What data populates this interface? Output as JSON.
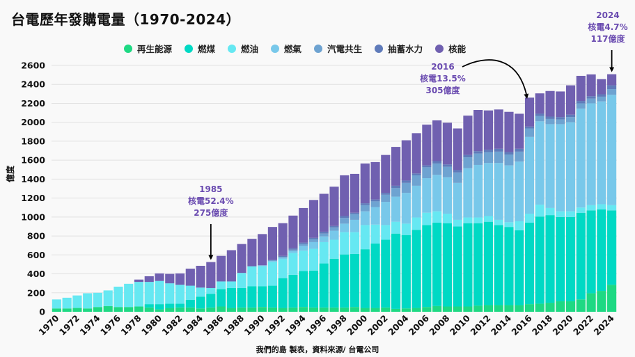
{
  "chart_data": {
    "type": "bar",
    "stacked": true,
    "title": "台電歷年發購電量（1970-2024）",
    "xlabel": "",
    "ylabel": "億度",
    "ylim": [
      0,
      2600
    ],
    "yticks": [
      0,
      200,
      400,
      600,
      800,
      1000,
      1200,
      1400,
      1600,
      1800,
      2000,
      2200,
      2400,
      2600
    ],
    "grid": true,
    "legend_position": "top",
    "source": "我們的島 製表，資料來源/ 台電公司",
    "categories": [
      1970,
      1971,
      1972,
      1973,
      1974,
      1975,
      1976,
      1977,
      1978,
      1979,
      1980,
      1981,
      1982,
      1983,
      1984,
      1985,
      1986,
      1987,
      1988,
      1989,
      1990,
      1991,
      1992,
      1993,
      1994,
      1995,
      1996,
      1997,
      1998,
      1999,
      2000,
      2001,
      2002,
      2003,
      2004,
      2005,
      2006,
      2007,
      2008,
      2009,
      2010,
      2011,
      2012,
      2013,
      2014,
      2015,
      2016,
      2017,
      2018,
      2019,
      2020,
      2021,
      2022,
      2023,
      2024
    ],
    "xtick_labels": [
      "1970",
      "1972",
      "1974",
      "1976",
      "1978",
      "1980",
      "1982",
      "1984",
      "1986",
      "1988",
      "1990",
      "1992",
      "1994",
      "1996",
      "1998",
      "2000",
      "2002",
      "2004",
      "2006",
      "2008",
      "2010",
      "2012",
      "2014",
      "2016",
      "2018",
      "2020",
      "2022",
      "2024"
    ],
    "series": [
      {
        "name": "再生能源",
        "color": "#1ed983",
        "values": [
          35,
          35,
          40,
          35,
          50,
          60,
          50,
          50,
          55,
          45,
          25,
          40,
          45,
          45,
          35,
          45,
          55,
          40,
          45,
          45,
          50,
          45,
          40,
          45,
          50,
          45,
          45,
          45,
          45,
          50,
          40,
          40,
          45,
          30,
          35,
          40,
          50,
          60,
          55,
          55,
          55,
          65,
          70,
          70,
          70,
          70,
          80,
          85,
          95,
          110,
          110,
          130,
          195,
          220,
          285
        ]
      },
      {
        "name": "燃煤",
        "color": "#00d9c4",
        "values": [
          0,
          0,
          0,
          0,
          0,
          0,
          0,
          0,
          0,
          35,
          55,
          45,
          40,
          80,
          125,
          145,
          185,
          210,
          205,
          225,
          220,
          230,
          315,
          345,
          380,
          390,
          465,
          515,
          560,
          560,
          620,
          680,
          715,
          795,
          775,
          825,
          865,
          880,
          880,
          845,
          880,
          870,
          880,
          845,
          825,
          790,
          860,
          920,
          925,
          890,
          890,
          915,
          875,
          860,
          785
        ]
      },
      {
        "name": "燃油",
        "color": "#66e8f2",
        "values": [
          95,
          113,
          132,
          160,
          150,
          165,
          215,
          245,
          260,
          235,
          245,
          215,
          200,
          150,
          95,
          60,
          80,
          70,
          160,
          210,
          210,
          250,
          200,
          230,
          215,
          230,
          225,
          200,
          235,
          230,
          255,
          200,
          155,
          125,
          120,
          130,
          130,
          120,
          100,
          70,
          60,
          60,
          60,
          55,
          50,
          95,
          95,
          125,
          75,
          60,
          60,
          55,
          55,
          55,
          55
        ]
      },
      {
        "name": "燃氣",
        "color": "#78c8ea",
        "values": [
          0,
          0,
          0,
          0,
          0,
          0,
          0,
          0,
          0,
          0,
          0,
          0,
          0,
          0,
          0,
          0,
          0,
          0,
          0,
          0,
          10,
          10,
          15,
          20,
          50,
          70,
          60,
          95,
          90,
          130,
          145,
          185,
          245,
          265,
          325,
          335,
          365,
          385,
          385,
          390,
          520,
          555,
          560,
          600,
          600,
          630,
          810,
          880,
          885,
          920,
          940,
          1045,
          1075,
          1085,
          1165
        ]
      },
      {
        "name": "汽電共生",
        "color": "#6ea3d1",
        "values": [
          0,
          0,
          0,
          0,
          0,
          0,
          0,
          0,
          0,
          0,
          0,
          0,
          0,
          0,
          0,
          0,
          0,
          0,
          0,
          0,
          0,
          10,
          10,
          15,
          20,
          30,
          30,
          35,
          60,
          60,
          65,
          60,
          75,
          90,
          105,
          110,
          115,
          120,
          110,
          110,
          115,
          120,
          115,
          120,
          115,
          105,
          90,
          55,
          55,
          50,
          55,
          55,
          50,
          50,
          60
        ]
      },
      {
        "name": "抽蓄水力",
        "color": "#5f7bba",
        "values": [
          0,
          0,
          0,
          0,
          0,
          0,
          0,
          0,
          0,
          0,
          0,
          0,
          0,
          0,
          0,
          0,
          0,
          0,
          0,
          0,
          0,
          0,
          10,
          15,
          15,
          15,
          20,
          15,
          20,
          15,
          20,
          20,
          20,
          25,
          25,
          20,
          20,
          25,
          25,
          25,
          25,
          25,
          25,
          30,
          25,
          30,
          20,
          25,
          25,
          25,
          25,
          25,
          25,
          25,
          40
        ]
      },
      {
        "name": "核能",
        "color": "#7060b0",
        "values": [
          0,
          0,
          0,
          0,
          0,
          0,
          0,
          0,
          25,
          60,
          80,
          100,
          120,
          180,
          230,
          275,
          270,
          330,
          305,
          290,
          330,
          350,
          345,
          345,
          365,
          400,
          400,
          415,
          430,
          410,
          420,
          395,
          400,
          410,
          425,
          425,
          430,
          430,
          440,
          440,
          415,
          435,
          415,
          415,
          425,
          370,
          305,
          215,
          270,
          270,
          310,
          265,
          230,
          160,
          117
        ]
      }
    ],
    "annotations": [
      {
        "year": 1985,
        "lines": [
          "1985",
          "核電52.4%",
          "275億度"
        ]
      },
      {
        "year": 2016,
        "lines": [
          "2016",
          "核電13.5%",
          "305億度"
        ]
      },
      {
        "year": 2024,
        "lines": [
          "2024",
          "核電4.7%",
          "117億度"
        ]
      }
    ]
  }
}
